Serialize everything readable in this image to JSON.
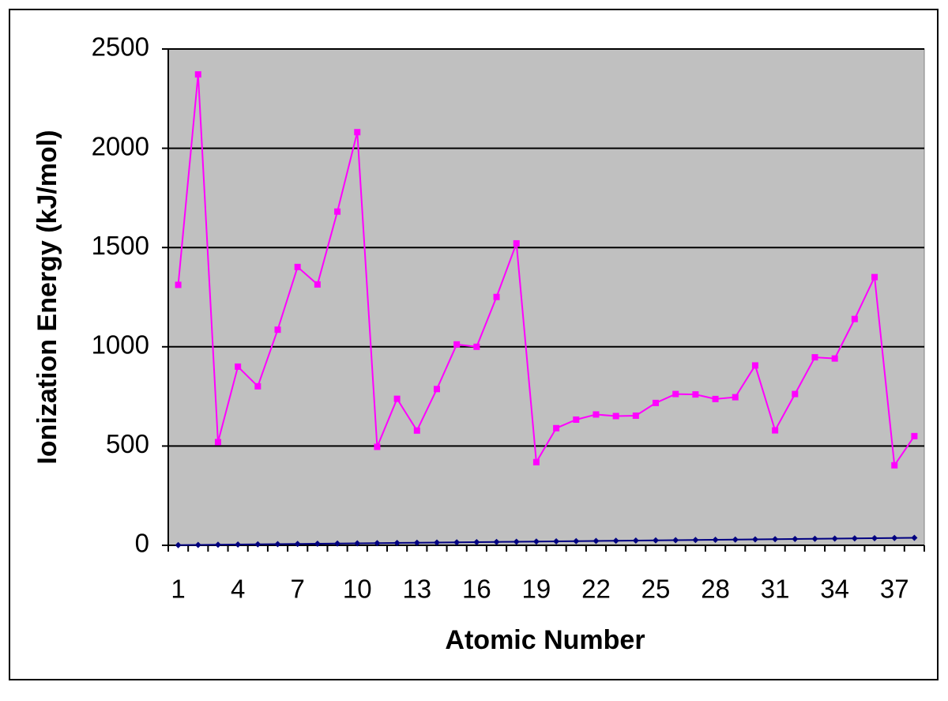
{
  "chart_data": {
    "type": "line",
    "x_label": "Atomic Number",
    "y_label": "Ionization Energy (kJ/mol)",
    "categories": [
      1,
      null,
      null,
      4,
      null,
      null,
      7,
      null,
      null,
      10,
      null,
      null,
      13,
      null,
      null,
      16,
      null,
      null,
      19,
      null,
      null,
      22,
      null,
      null,
      25,
      null,
      null,
      28,
      null,
      null,
      31,
      null,
      null,
      34,
      null,
      null,
      37,
      null
    ],
    "series": [
      {
        "color": "#ff00ff",
        "marker": "square",
        "values": [
          1312,
          2372,
          520,
          900,
          801,
          1086,
          1402,
          1314,
          1681,
          2081,
          496,
          738,
          578,
          787,
          1012,
          1000,
          1251,
          1521,
          419,
          590,
          633,
          659,
          651,
          653,
          717,
          762,
          760,
          737,
          746,
          906,
          579,
          762,
          947,
          941,
          1140,
          1351,
          403,
          550
        ]
      },
      {
        "color": "#000080",
        "marker": "diamond",
        "values": [
          1,
          2,
          3,
          4,
          5,
          6,
          7,
          8,
          9,
          10,
          11,
          12,
          13,
          14,
          15,
          16,
          17,
          18,
          19,
          20,
          21,
          22,
          23,
          24,
          25,
          26,
          27,
          28,
          29,
          30,
          31,
          32,
          33,
          34,
          35,
          36,
          37,
          38
        ]
      }
    ],
    "ylim": [
      0,
      2500
    ],
    "yticks": [
      0,
      500,
      1000,
      1500,
      2000,
      2500
    ],
    "grid": true,
    "plot_background": "#c0c0c0"
  }
}
